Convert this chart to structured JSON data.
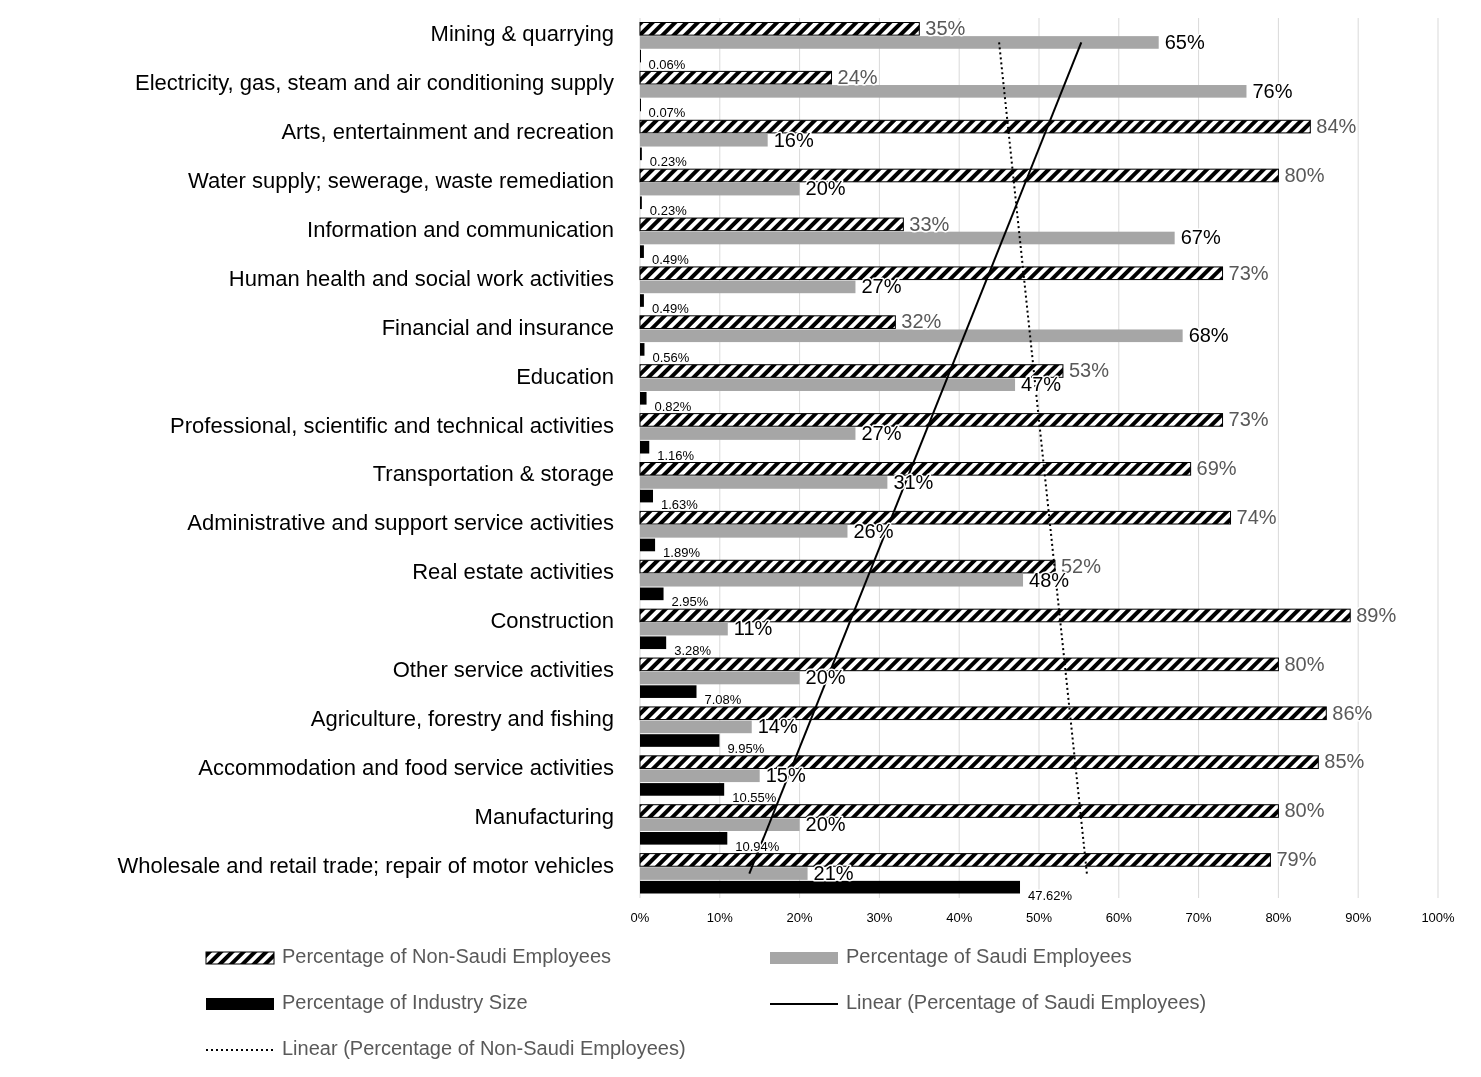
{
  "chart_data": {
    "type": "bar",
    "orientation": "horizontal",
    "categories": [
      "Mining & quarrying",
      "Electricity, gas, steam and air conditioning supply",
      "Arts, entertainment and recreation",
      "Water supply; sewerage, waste remediation",
      "Information and communication",
      "Human health and social work activities",
      "Financial and insurance",
      "Education",
      "Professional, scientific and technical activities",
      "Transportation & storage",
      "Administrative and support service activities",
      "Real estate activities",
      "Construction",
      "Other service activities",
      "Agriculture, forestry and fishing",
      "Accommodation and food service activities",
      "Manufacturing",
      "Wholesale and retail trade; repair of motor vehicles"
    ],
    "series": [
      {
        "name": "Percentage of Non-Saudi Employees",
        "color": "#000000",
        "values": [
          35,
          24,
          84,
          80,
          33,
          73,
          32,
          53,
          73,
          69,
          74,
          52,
          89,
          80,
          86,
          85,
          80,
          79
        ],
        "value_labels": [
          "35%",
          "24%",
          "84%",
          "80%",
          "33%",
          "73%",
          "32%",
          "53%",
          "73%",
          "69%",
          "74%",
          "52%",
          "89%",
          "80%",
          "86%",
          "85%",
          "80%",
          "79%"
        ]
      },
      {
        "name": "Percentage of Saudi Employees",
        "color": "#a6a6a6",
        "values": [
          65,
          76,
          16,
          20,
          67,
          27,
          68,
          47,
          27,
          31,
          26,
          48,
          11,
          20,
          14,
          15,
          20,
          21
        ],
        "value_labels": [
          "65%",
          "76%",
          "16%",
          "20%",
          "67%",
          "27%",
          "68%",
          "47%",
          "27%",
          "31%",
          "26%",
          "48%",
          "11%",
          "20%",
          "14%",
          "15%",
          "20%",
          "21%"
        ]
      },
      {
        "name": "Percentage of Industry Size",
        "color": "#000000",
        "values": [
          0.06,
          0.07,
          0.23,
          0.23,
          0.49,
          0.49,
          0.56,
          0.82,
          1.16,
          1.63,
          1.89,
          2.95,
          3.28,
          7.08,
          9.95,
          10.55,
          10.94,
          47.62
        ],
        "value_labels": [
          "0.06%",
          "0.07%",
          "0.23%",
          "0.23%",
          "0.49%",
          "0.49%",
          "0.56%",
          "0.82%",
          "1.16%",
          "1.63%",
          "1.89%",
          "2.95%",
          "3.28%",
          "7.08%",
          "9.95%",
          "10.55%",
          "10.94%",
          "47.62%"
        ]
      },
      {
        "name": "Linear (Percentage of Saudi Employees)",
        "type": "line",
        "color": "#000000",
        "line_style": "solid",
        "values": [
          55.3,
          null,
          null,
          null,
          null,
          null,
          null,
          null,
          null,
          null,
          null,
          null,
          null,
          null,
          null,
          null,
          null,
          13.7
        ]
      },
      {
        "name": "Linear (Percentage of Non-Saudi Employees)",
        "type": "line",
        "color": "#000000",
        "line_style": "dotted",
        "values": [
          45,
          null,
          null,
          null,
          null,
          null,
          null,
          null,
          null,
          null,
          null,
          null,
          null,
          null,
          null,
          null,
          null,
          56
        ]
      }
    ],
    "xlim": [
      0,
      100
    ],
    "xticks": [
      {
        "value": 0,
        "label": "0%"
      },
      {
        "value": 10,
        "label": "10%"
      },
      {
        "value": 20,
        "label": "20%"
      },
      {
        "value": 30,
        "label": "30%"
      },
      {
        "value": 40,
        "label": "40%"
      },
      {
        "value": 50,
        "label": "50%"
      },
      {
        "value": 60,
        "label": "60%"
      },
      {
        "value": 70,
        "label": "70%"
      },
      {
        "value": 80,
        "label": "80%"
      },
      {
        "value": 90,
        "label": "90%"
      },
      {
        "value": 100,
        "label": "100%"
      }
    ],
    "grid": "x",
    "legend": "bottom"
  }
}
